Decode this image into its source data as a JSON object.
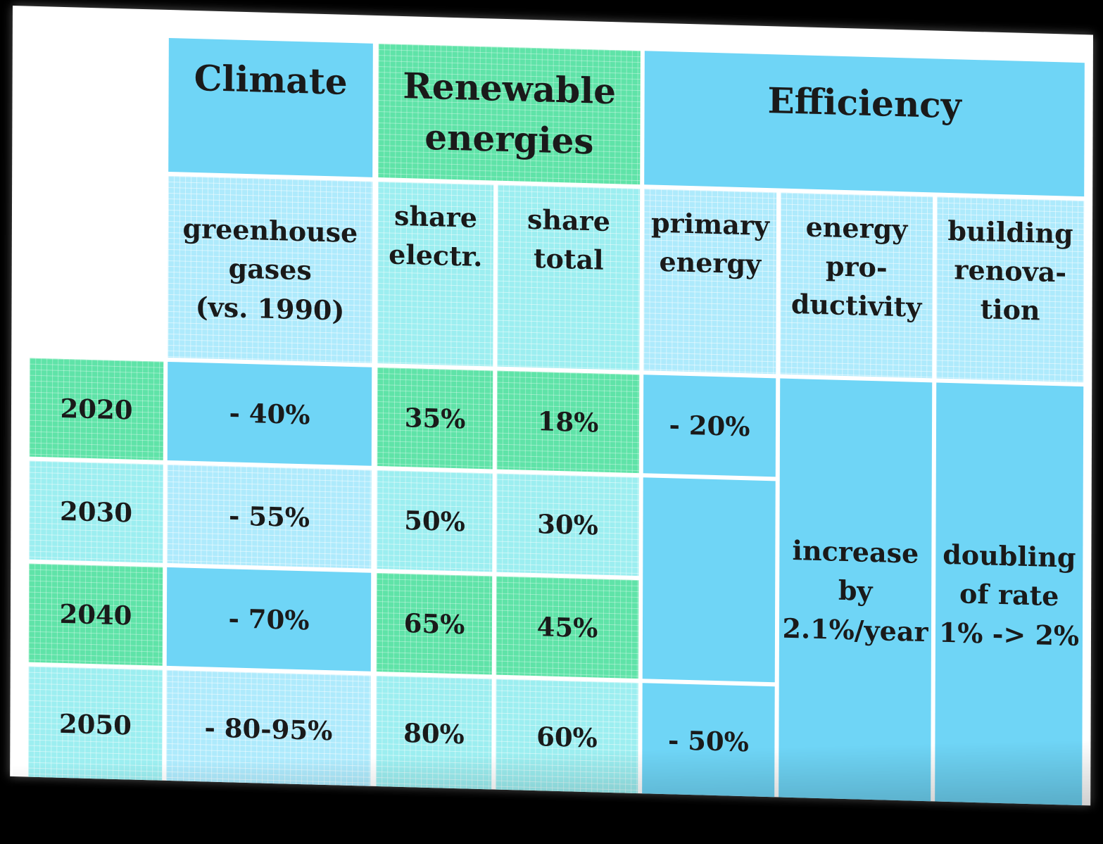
{
  "header": {
    "climate": "Climate",
    "renewable": "Renewable\nenergies",
    "efficiency": "Efficiency"
  },
  "subheader": {
    "ghg": "greenhouse\ngases\n(vs. 1990)",
    "share_electr": "share\nelectr.",
    "share_total": "share\ntotal",
    "primary_energy": "primary\nenergy",
    "energy_productivity": "energy\npro-\nductivity",
    "building_renovation": "building\nrenova-\ntion"
  },
  "rows": [
    {
      "year": "2020",
      "ghg": "- 40%",
      "electr": "35%",
      "total": "18%"
    },
    {
      "year": "2030",
      "ghg": "- 55%",
      "electr": "50%",
      "total": "30%"
    },
    {
      "year": "2040",
      "ghg": "- 70%",
      "electr": "65%",
      "total": "45%"
    },
    {
      "year": "2050",
      "ghg": "- 80-95%",
      "electr": "80%",
      "total": "60%"
    }
  ],
  "efficiency": {
    "primary_2020": "- 20%",
    "primary_2050": "- 50%",
    "productivity": "increase\nby\n2.1%/year",
    "renovation": "doubling\nof rate\n1% -> 2%"
  },
  "colors": {
    "blue": "#6fd5f6",
    "green": "#5fe3a8",
    "cyan_pattern": "#9ceef0",
    "header_pattern": "#aeeafc"
  }
}
